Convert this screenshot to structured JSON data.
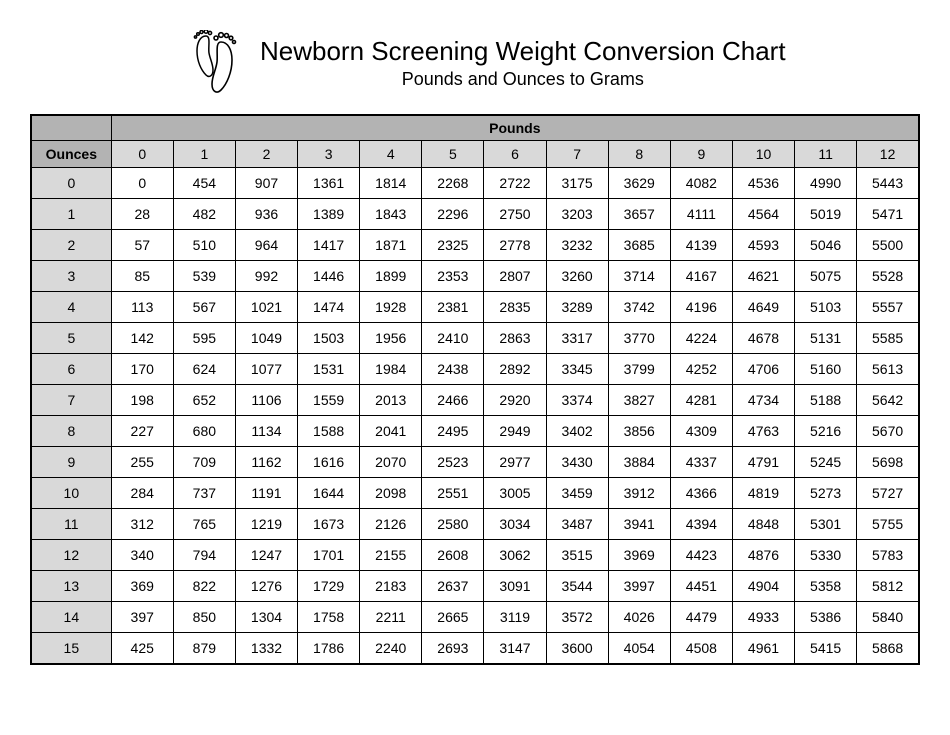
{
  "title": "Newborn Screening Weight Conversion Chart",
  "subtitle": "Pounds and Ounces to Grams",
  "headers": {
    "pounds_label": "Pounds",
    "ounces_label": "Ounces"
  },
  "pound_columns": [
    0,
    1,
    2,
    3,
    4,
    5,
    6,
    7,
    8,
    9,
    10,
    11,
    12
  ],
  "ounce_rows": [
    0,
    1,
    2,
    3,
    4,
    5,
    6,
    7,
    8,
    9,
    10,
    11,
    12,
    13,
    14,
    15
  ],
  "table": {
    "type": "table",
    "background_color": "#ffffff",
    "header_dark_bg": "#b3b3b3",
    "header_light_bg": "#d9d9d9",
    "border_color": "#000000",
    "cell_font_family": "Arial",
    "cell_font_size_pt": 10,
    "title_font_family": "Comic Sans MS",
    "title_font_size_pt": 20,
    "subtitle_font_size_pt": 14,
    "grams": [
      [
        0,
        454,
        907,
        1361,
        1814,
        2268,
        2722,
        3175,
        3629,
        4082,
        4536,
        4990,
        5443
      ],
      [
        28,
        482,
        936,
        1389,
        1843,
        2296,
        2750,
        3203,
        3657,
        4111,
        4564,
        5019,
        5471
      ],
      [
        57,
        510,
        964,
        1417,
        1871,
        2325,
        2778,
        3232,
        3685,
        4139,
        4593,
        5046,
        5500
      ],
      [
        85,
        539,
        992,
        1446,
        1899,
        2353,
        2807,
        3260,
        3714,
        4167,
        4621,
        5075,
        5528
      ],
      [
        113,
        567,
        1021,
        1474,
        1928,
        2381,
        2835,
        3289,
        3742,
        4196,
        4649,
        5103,
        5557
      ],
      [
        142,
        595,
        1049,
        1503,
        1956,
        2410,
        2863,
        3317,
        3770,
        4224,
        4678,
        5131,
        5585
      ],
      [
        170,
        624,
        1077,
        1531,
        1984,
        2438,
        2892,
        3345,
        3799,
        4252,
        4706,
        5160,
        5613
      ],
      [
        198,
        652,
        1106,
        1559,
        2013,
        2466,
        2920,
        3374,
        3827,
        4281,
        4734,
        5188,
        5642
      ],
      [
        227,
        680,
        1134,
        1588,
        2041,
        2495,
        2949,
        3402,
        3856,
        4309,
        4763,
        5216,
        5670
      ],
      [
        255,
        709,
        1162,
        1616,
        2070,
        2523,
        2977,
        3430,
        3884,
        4337,
        4791,
        5245,
        5698
      ],
      [
        284,
        737,
        1191,
        1644,
        2098,
        2551,
        3005,
        3459,
        3912,
        4366,
        4819,
        5273,
        5727
      ],
      [
        312,
        765,
        1219,
        1673,
        2126,
        2580,
        3034,
        3487,
        3941,
        4394,
        4848,
        5301,
        5755
      ],
      [
        340,
        794,
        1247,
        1701,
        2155,
        2608,
        3062,
        3515,
        3969,
        4423,
        4876,
        5330,
        5783
      ],
      [
        369,
        822,
        1276,
        1729,
        2183,
        2637,
        3091,
        3544,
        3997,
        4451,
        4904,
        5358,
        5812
      ],
      [
        397,
        850,
        1304,
        1758,
        2211,
        2665,
        3119,
        3572,
        4026,
        4479,
        4933,
        5386,
        5840
      ],
      [
        425,
        879,
        1332,
        1786,
        2240,
        2693,
        3147,
        3600,
        4054,
        4508,
        4961,
        5415,
        5868
      ]
    ]
  }
}
